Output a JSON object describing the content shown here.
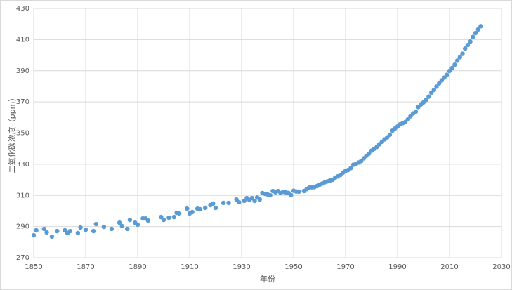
{
  "chart_data": {
    "type": "scatter",
    "x_label": "年份",
    "y_label": "二氧化碳浓度（ppm）",
    "color": "#5b9bd5",
    "grid": true,
    "xlim": [
      1850,
      2030
    ],
    "xticks": [
      1850,
      1870,
      1890,
      1910,
      1930,
      1950,
      1970,
      1990,
      2010,
      2030
    ],
    "ylim": [
      270,
      430
    ],
    "yticks": [
      270,
      290,
      310,
      330,
      350,
      370,
      390,
      410,
      430
    ],
    "x": [
      1850,
      1851,
      1854,
      1855,
      1857,
      1859,
      1862,
      1863,
      1864,
      1867,
      1868,
      1870,
      1873,
      1874,
      1877,
      1880,
      1883,
      1884,
      1886,
      1887,
      1889,
      1890,
      1892,
      1893,
      1894,
      1899,
      1900,
      1902,
      1904,
      1905,
      1906,
      1909,
      1910,
      1911,
      1913,
      1914,
      1916,
      1918,
      1919,
      1920,
      1923,
      1925,
      1928,
      1929,
      1931,
      1932,
      1933,
      1934,
      1935,
      1936,
      1937,
      1938,
      1939,
      1940,
      1941,
      1942,
      1943,
      1944,
      1945,
      1946,
      1947,
      1948,
      1949,
      1950,
      1951,
      1952,
      1954,
      1955,
      1956,
      1957,
      1958,
      1959,
      1960,
      1961,
      1962,
      1963,
      1964,
      1965,
      1966,
      1967,
      1968,
      1969,
      1970,
      1971,
      1972,
      1973,
      1974,
      1975,
      1976,
      1977,
      1978,
      1979,
      1980,
      1981,
      1982,
      1983,
      1984,
      1985,
      1986,
      1987,
      1988,
      1989,
      1990,
      1991,
      1992,
      1993,
      1994,
      1995,
      1996,
      1997,
      1998,
      1999,
      2000,
      2001,
      2002,
      2003,
      2004,
      2005,
      2006,
      2007,
      2008,
      2009,
      2010,
      2011,
      2012,
      2013,
      2014,
      2015,
      2016,
      2017,
      2018,
      2019,
      2020,
      2021,
      2022
    ],
    "values": [
      284.4,
      287.6,
      288.5,
      286.2,
      283.5,
      287.1,
      287.6,
      285.8,
      287.1,
      285.8,
      289.4,
      288.0,
      287.1,
      291.6,
      289.8,
      288.5,
      292.5,
      290.3,
      288.5,
      294.3,
      292.5,
      291.2,
      295.2,
      295.2,
      293.9,
      296.1,
      294.3,
      295.7,
      296.1,
      298.8,
      298.4,
      301.5,
      298.4,
      299.3,
      301.5,
      301.1,
      302.0,
      303.8,
      304.7,
      302.0,
      305.2,
      305.2,
      307.4,
      305.6,
      306.5,
      308.3,
      307.0,
      308.3,
      306.5,
      308.7,
      307.4,
      311.5,
      311.0,
      310.6,
      310.1,
      312.8,
      312.0,
      312.8,
      311.5,
      312.3,
      312.0,
      311.6,
      310.2,
      313.0,
      312.5,
      312.4,
      312.8,
      314.0,
      315.0,
      315.2,
      315.3,
      316.0,
      316.9,
      317.6,
      318.4,
      319.0,
      319.6,
      320.0,
      321.4,
      322.2,
      323.1,
      324.6,
      325.7,
      326.3,
      327.5,
      329.7,
      330.2,
      331.1,
      332.0,
      333.8,
      335.4,
      336.8,
      338.7,
      339.9,
      341.1,
      342.8,
      344.4,
      345.9,
      347.2,
      348.9,
      351.5,
      352.9,
      354.2,
      355.6,
      356.4,
      357.1,
      358.8,
      360.8,
      362.6,
      363.7,
      366.7,
      368.4,
      369.7,
      371.3,
      373.4,
      375.9,
      377.7,
      379.8,
      381.9,
      383.8,
      385.6,
      387.4,
      389.9,
      391.7,
      393.9,
      396.5,
      398.7,
      400.9,
      404.2,
      406.5,
      408.7,
      411.7,
      414.2,
      416.5,
      418.6
    ]
  }
}
